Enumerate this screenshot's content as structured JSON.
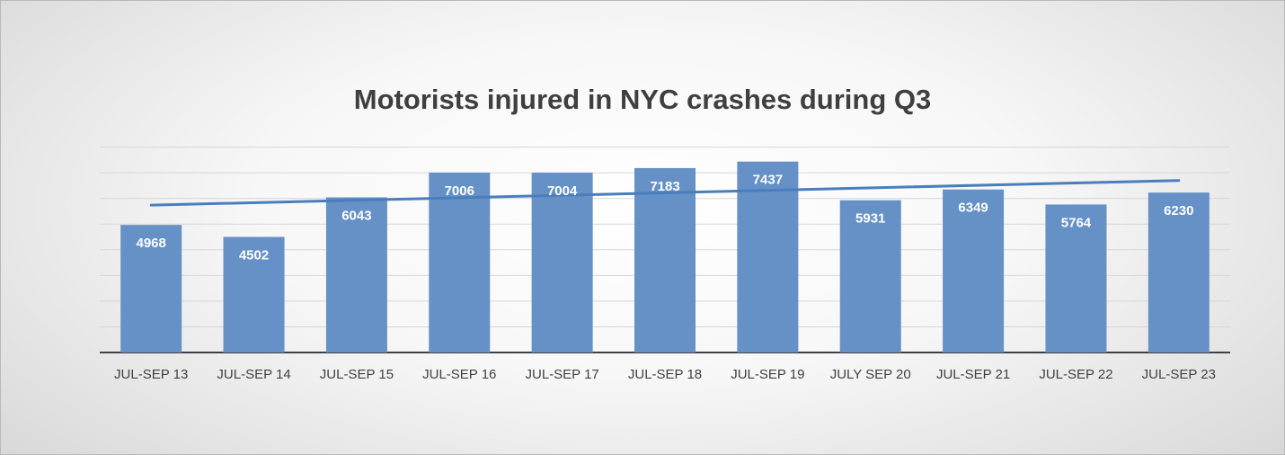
{
  "chart_data": {
    "type": "bar",
    "title": "Motorists injured in NYC crashes during Q3",
    "xlabel": "",
    "ylabel": "",
    "categories": [
      "JUL-SEP 13",
      "JUL-SEP 14",
      "JUL-SEP 15",
      "JUL-SEP 16",
      "JUL-SEP 17",
      "JUL-SEP 18",
      "JUL-SEP 19",
      "JULY SEP 20",
      "JUL-SEP 21",
      "JUL-SEP 22",
      "JUL-SEP 23"
    ],
    "values": [
      4968,
      4502,
      6043,
      7006,
      7004,
      7183,
      7437,
      5931,
      6349,
      5764,
      6230
    ],
    "trendline": {
      "type": "linear"
    },
    "ylim": [
      0,
      8000
    ],
    "y_tick_step": 1000,
    "y_tick_labels_shown": false,
    "grid": true,
    "data_labels": true,
    "legend": "none",
    "colors": {
      "bar": "#6591c7",
      "trendline": "#4a7ebb",
      "grid": "#d6d6d6",
      "axis": "#404040",
      "bar_label": "#ffffff",
      "title": "#3f3f3f"
    }
  }
}
